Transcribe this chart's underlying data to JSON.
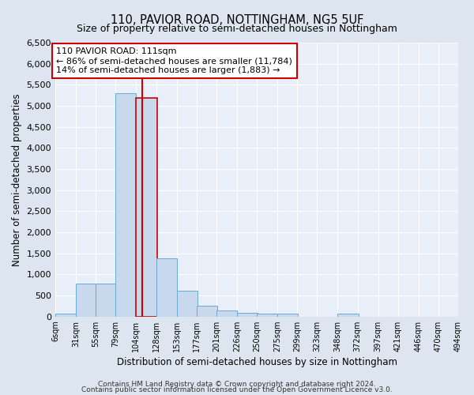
{
  "title": "110, PAVIOR ROAD, NOTTINGHAM, NG5 5UF",
  "subtitle": "Size of property relative to semi-detached houses in Nottingham",
  "xlabel": "Distribution of semi-detached houses by size in Nottingham",
  "ylabel": "Number of semi-detached properties",
  "bin_labels": [
    "6sqm",
    "31sqm",
    "55sqm",
    "79sqm",
    "104sqm",
    "128sqm",
    "153sqm",
    "177sqm",
    "201sqm",
    "226sqm",
    "250sqm",
    "275sqm",
    "299sqm",
    "323sqm",
    "348sqm",
    "372sqm",
    "397sqm",
    "421sqm",
    "446sqm",
    "470sqm",
    "494sqm"
  ],
  "bin_edges": [
    6,
    31,
    55,
    79,
    104,
    128,
    153,
    177,
    201,
    226,
    250,
    275,
    299,
    323,
    348,
    372,
    397,
    421,
    446,
    470,
    494
  ],
  "bar_heights": [
    60,
    780,
    780,
    5300,
    5180,
    1390,
    620,
    250,
    140,
    90,
    70,
    60,
    0,
    0,
    60,
    0,
    0,
    0,
    0,
    0
  ],
  "bar_color": "#c8d9ee",
  "bar_edge_color": "#6aabd2",
  "highlight_bin_index": 4,
  "highlight_bar_edge_color": "#cc0000",
  "property_line_x": 111,
  "property_line_color": "#cc0000",
  "annotation_text": "110 PAVIOR ROAD: 111sqm\n← 86% of semi-detached houses are smaller (11,784)\n14% of semi-detached houses are larger (1,883) →",
  "annotation_box_color": "#ffffff",
  "annotation_box_edge_color": "#cc0000",
  "ylim": [
    0,
    6500
  ],
  "yticks": [
    0,
    500,
    1000,
    1500,
    2000,
    2500,
    3000,
    3500,
    4000,
    4500,
    5000,
    5500,
    6000,
    6500
  ],
  "footer_line1": "Contains HM Land Registry data © Crown copyright and database right 2024.",
  "footer_line2": "Contains public sector information licensed under the Open Government Licence v3.0.",
  "background_color": "#dde6f0",
  "plot_background_color": "#e8eff8"
}
